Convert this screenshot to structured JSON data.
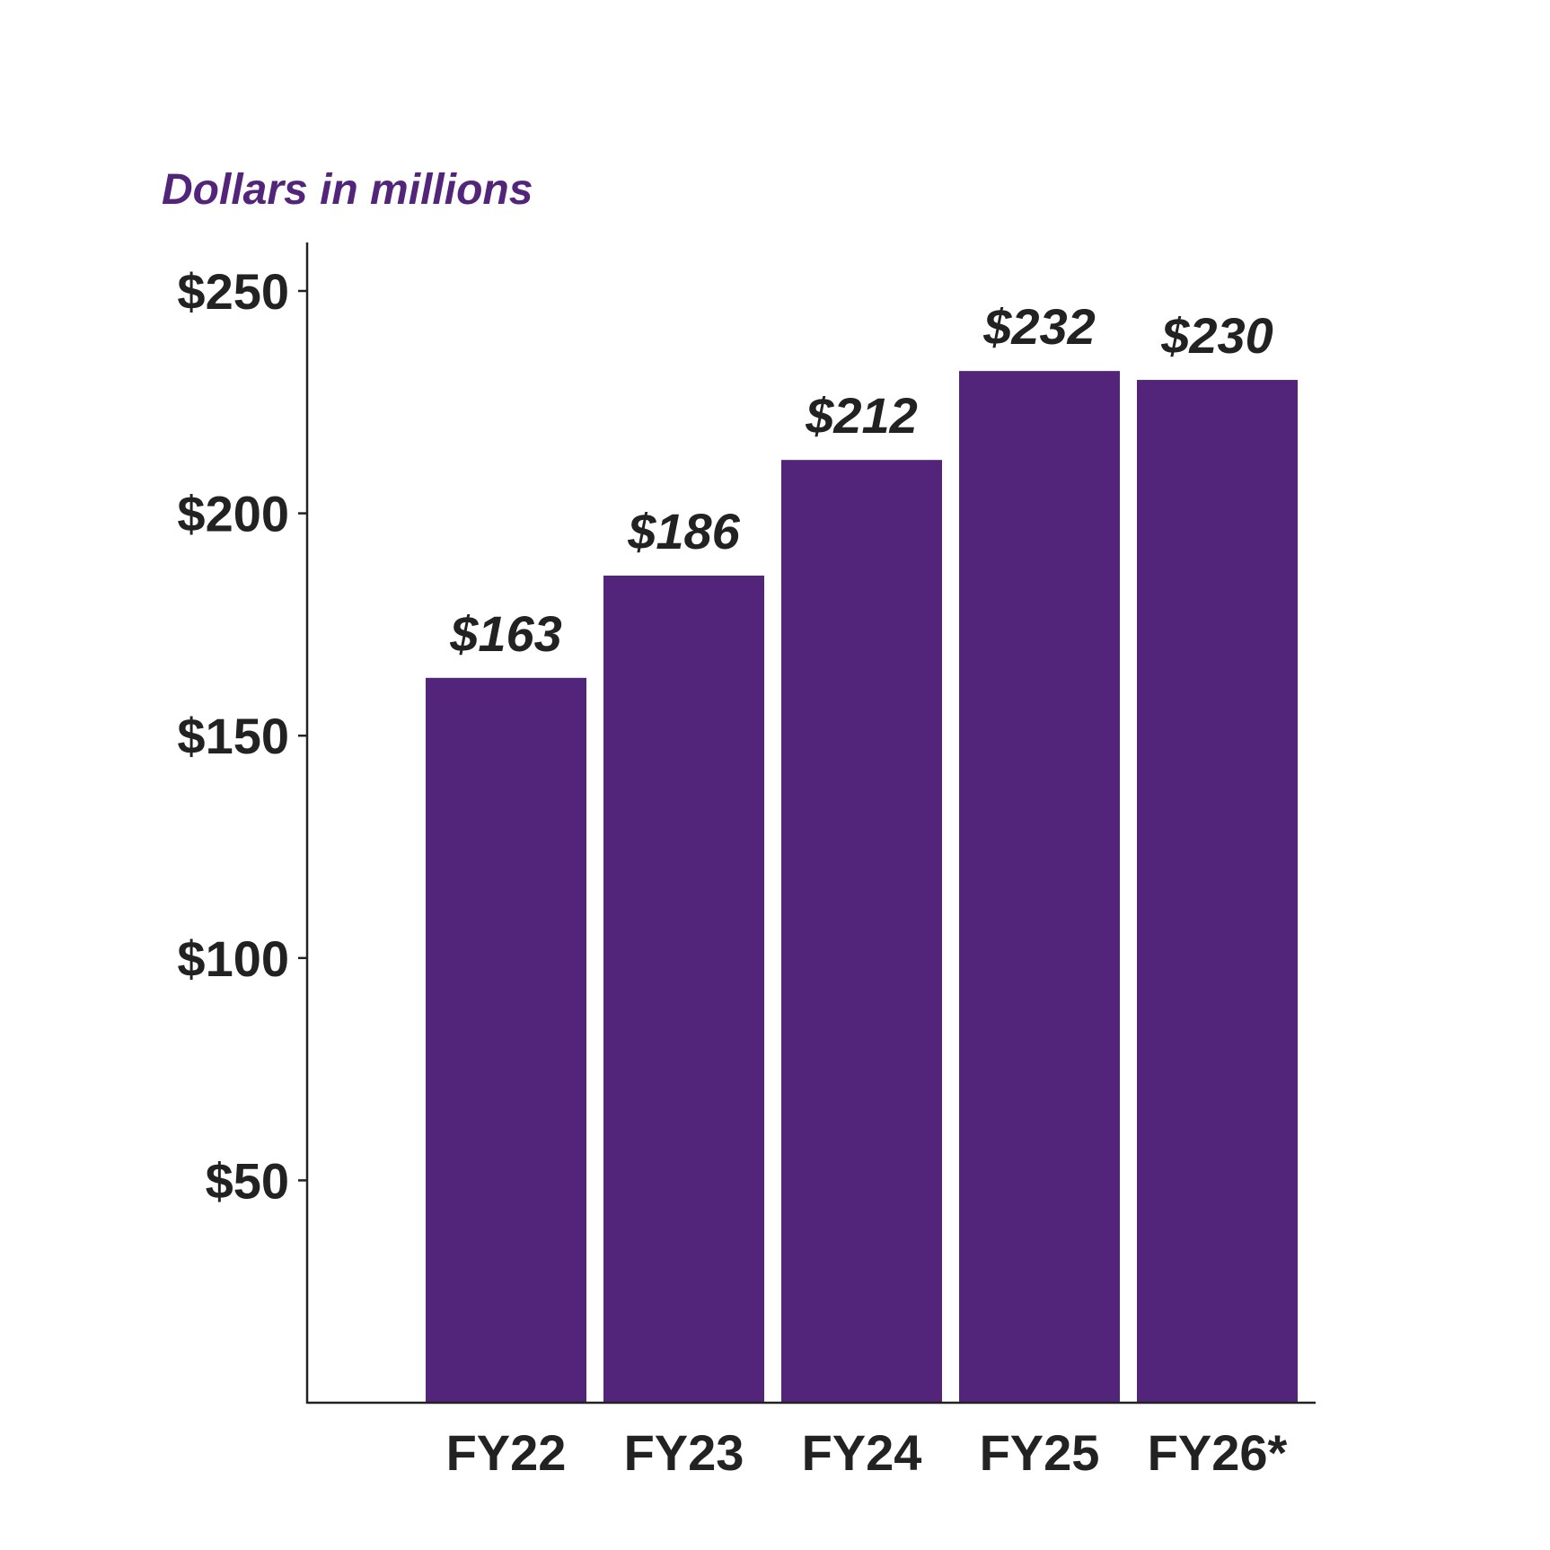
{
  "chart_data": {
    "type": "bar",
    "categories": [
      "FY22",
      "FY23",
      "FY24",
      "FY25",
      "FY26*"
    ],
    "values": [
      163,
      186,
      212,
      232,
      230
    ],
    "value_labels": [
      "$163",
      "$186",
      "$212",
      "$232",
      "$230"
    ],
    "unit_label": "Dollars in millions",
    "title": "",
    "xlabel": "",
    "ylabel": "",
    "ylim": [
      0,
      260
    ],
    "yticks": [
      50,
      100,
      150,
      200,
      250
    ],
    "ytick_labels": [
      "$50",
      "$100",
      "$150",
      "$200",
      "$250"
    ],
    "grid": false,
    "legend": "none",
    "colors": {
      "bar": "#52247a",
      "unit_label": "#52247a",
      "axis": "#222222",
      "text": "#222222"
    }
  }
}
